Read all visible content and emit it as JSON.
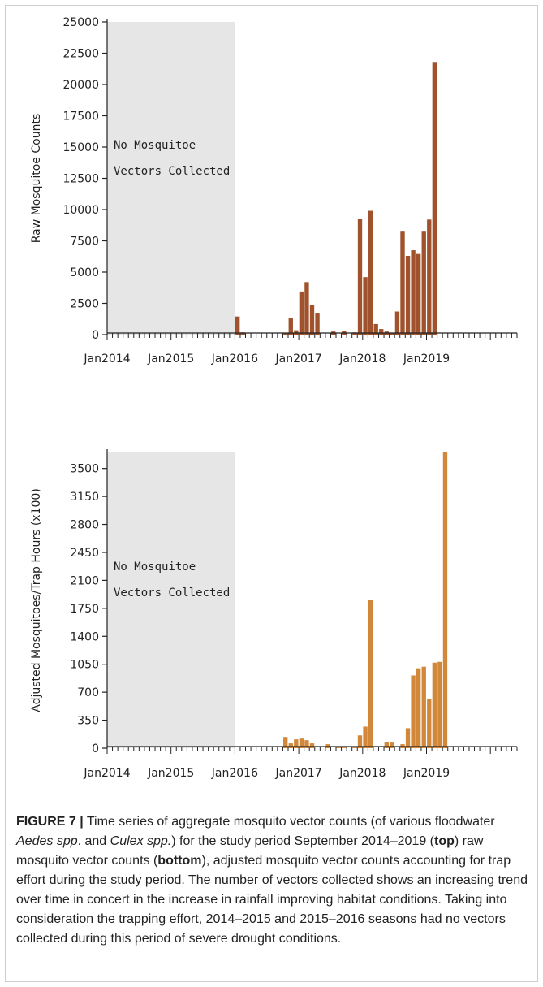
{
  "chart_data": [
    {
      "type": "bar",
      "ylabel": "Raw Mosquitoe Counts",
      "ylim": [
        0,
        25000
      ],
      "yticks": [
        0,
        2500,
        5000,
        7500,
        10000,
        12500,
        15000,
        17500,
        20000,
        22500,
        25000
      ],
      "xticks": [
        "Jan2014",
        "Jan2015",
        "Jan2016",
        "Jan2017",
        "Jan2018",
        "Jan2019"
      ],
      "xrange": [
        "2014-01",
        "2020-06"
      ],
      "shaded_region": {
        "start": "2014-01",
        "end": "2016-01",
        "color": "#e6e6e6",
        "label_lines": [
          "No Mosquitoe",
          "Vectors Collected"
        ]
      },
      "bar_color": "#a0522d",
      "x": [
        "2016-01",
        "2016-02",
        "2016-10",
        "2016-11",
        "2016-12",
        "2017-01",
        "2017-02",
        "2017-03",
        "2017-04",
        "2017-07",
        "2017-09",
        "2017-11",
        "2017-12",
        "2018-01",
        "2018-02",
        "2018-03",
        "2018-04",
        "2018-05",
        "2018-06",
        "2018-07",
        "2018-08",
        "2018-09",
        "2018-10",
        "2018-11",
        "2018-12",
        "2019-01",
        "2019-02",
        "2019-03",
        "2019-04"
      ],
      "values": [
        1450,
        180,
        150,
        1350,
        350,
        3450,
        4200,
        2400,
        1750,
        250,
        300,
        180,
        9250,
        4600,
        9900,
        850,
        450,
        250,
        150,
        1850,
        8300,
        6300,
        6750,
        6450,
        8300,
        9200,
        21800,
        0,
        0
      ]
    },
    {
      "type": "bar",
      "ylabel": "Adjusted Mosquitoes/Trap Hours (x100)",
      "ylim": [
        0,
        3700
      ],
      "yticks": [
        0,
        350,
        700,
        1050,
        1400,
        1750,
        2100,
        2450,
        2800,
        3150,
        3500
      ],
      "xticks": [
        "Jan2014",
        "Jan2015",
        "Jan2016",
        "Jan2017",
        "Jan2018",
        "Jan2019"
      ],
      "xrange": [
        "2014-01",
        "2020-06"
      ],
      "shaded_region": {
        "start": "2014-01",
        "end": "2016-01",
        "color": "#e6e6e6",
        "label_lines": [
          "No Mosquitoe",
          "Vectors Collected"
        ]
      },
      "bar_color": "#d2883a",
      "x": [
        "2016-10",
        "2016-11",
        "2016-12",
        "2017-01",
        "2017-02",
        "2017-03",
        "2017-06",
        "2017-08",
        "2017-09",
        "2017-11",
        "2017-12",
        "2018-01",
        "2018-02",
        "2018-03",
        "2018-05",
        "2018-06",
        "2018-08",
        "2018-09",
        "2018-10",
        "2018-11",
        "2018-12",
        "2019-01",
        "2019-02",
        "2019-03",
        "2019-04"
      ],
      "values": [
        140,
        60,
        110,
        120,
        100,
        60,
        50,
        20,
        20,
        20,
        160,
        270,
        1860,
        0,
        80,
        70,
        50,
        250,
        910,
        1000,
        1020,
        620,
        1070,
        1080,
        3700
      ]
    }
  ],
  "caption": {
    "fig": "FIGURE 7 |",
    "t1": "Time series of aggregate mosquito vector counts (of various floodwater",
    "t2": "Aedes spp",
    "t3": ". and",
    "t4": "Culex spp.",
    "t5": ") for the study period September 2014–2019 (",
    "t6": "top",
    "t7": ") raw mosquito vector counts (",
    "t8": "bottom",
    "t9": "), adjusted mosquito vector counts accounting for trap effort during the study period. The number of vectors collected shows an increasing trend over time in concert in the increase in rainfall improving habitat conditions. Taking into consideration the trapping effort, 2014–2015 and 2015–2016 seasons had no vectors collected during this period of severe drought conditions."
  }
}
